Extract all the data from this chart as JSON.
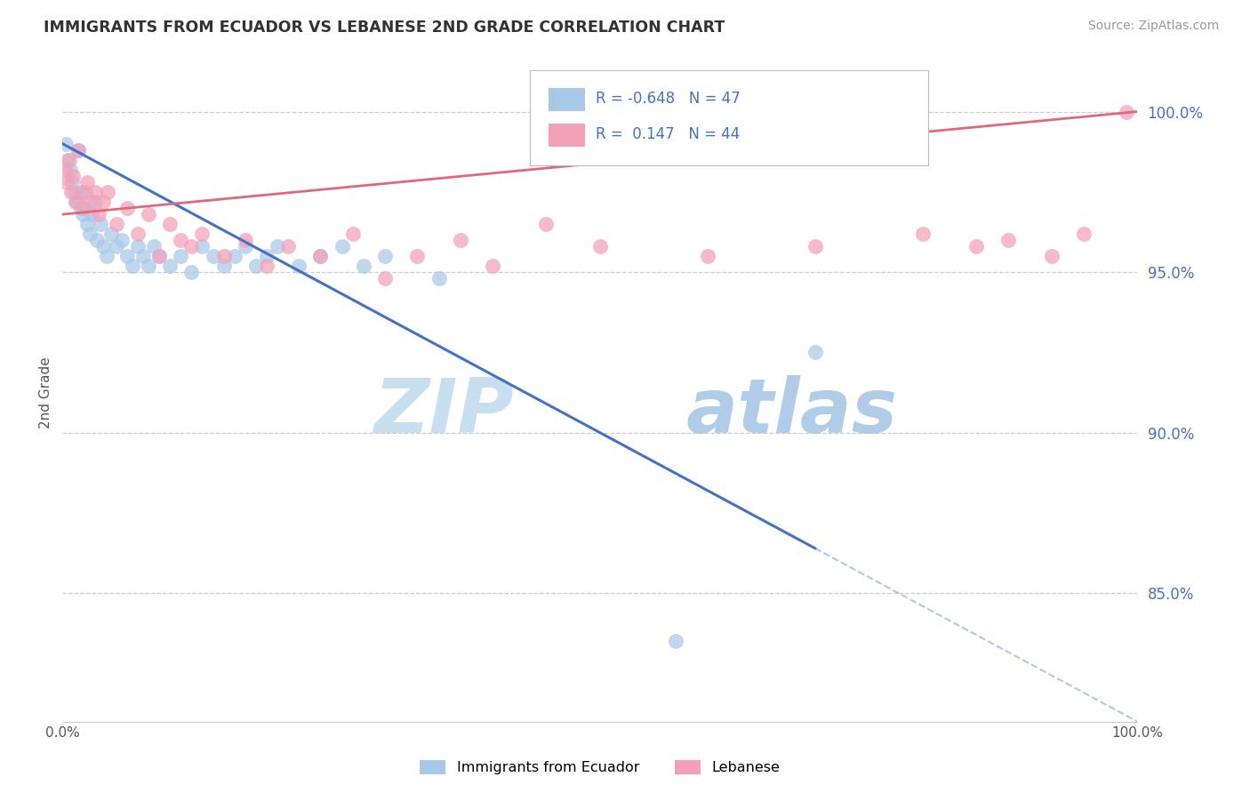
{
  "title": "IMMIGRANTS FROM ECUADOR VS LEBANESE 2ND GRADE CORRELATION CHART",
  "source": "Source: ZipAtlas.com",
  "ylabel": "2nd Grade",
  "r_ecuador": -0.648,
  "n_ecuador": 47,
  "r_lebanese": 0.147,
  "n_lebanese": 44,
  "color_ecuador": "#a8c8e8",
  "color_lebanese": "#f4a0b8",
  "line_color_ecuador": "#4472c4",
  "line_color_lebanese": "#e06878",
  "watermark_zip_color": "#c8dff0",
  "watermark_atlas_color": "#b0cce8",
  "legend_ecuador": "Immigrants from Ecuador",
  "legend_lebanese": "Lebanese",
  "ecuador_x": [
    0.3,
    0.5,
    0.7,
    0.9,
    1.1,
    1.3,
    1.5,
    1.7,
    1.9,
    2.1,
    2.3,
    2.5,
    2.7,
    3.0,
    3.2,
    3.5,
    3.8,
    4.1,
    4.5,
    5.0,
    5.5,
    6.0,
    6.5,
    7.0,
    7.5,
    8.0,
    8.5,
    9.0,
    10.0,
    11.0,
    12.0,
    13.0,
    14.0,
    15.0,
    16.0,
    17.0,
    18.0,
    19.0,
    20.0,
    22.0,
    24.0,
    26.0,
    28.0,
    30.0,
    35.0,
    57.0,
    70.0
  ],
  "ecuador_y": [
    99.0,
    98.5,
    98.2,
    97.8,
    97.5,
    97.2,
    98.8,
    97.0,
    96.8,
    97.5,
    96.5,
    96.2,
    96.8,
    97.2,
    96.0,
    96.5,
    95.8,
    95.5,
    96.2,
    95.8,
    96.0,
    95.5,
    95.2,
    95.8,
    95.5,
    95.2,
    95.8,
    95.5,
    95.2,
    95.5,
    95.0,
    95.8,
    95.5,
    95.2,
    95.5,
    95.8,
    95.2,
    95.5,
    95.8,
    95.2,
    95.5,
    95.8,
    95.2,
    95.5,
    94.8,
    83.5,
    92.5
  ],
  "lebanese_x": [
    0.2,
    0.4,
    0.6,
    0.8,
    1.0,
    1.2,
    1.5,
    1.8,
    2.0,
    2.3,
    2.6,
    3.0,
    3.4,
    3.8,
    4.2,
    5.0,
    6.0,
    7.0,
    8.0,
    9.0,
    10.0,
    11.0,
    12.0,
    13.0,
    15.0,
    17.0,
    19.0,
    21.0,
    24.0,
    27.0,
    30.0,
    33.0,
    37.0,
    40.0,
    45.0,
    50.0,
    60.0,
    70.0,
    80.0,
    85.0,
    88.0,
    92.0,
    95.0,
    99.0
  ],
  "lebanese_y": [
    98.2,
    97.8,
    98.5,
    97.5,
    98.0,
    97.2,
    98.8,
    97.5,
    97.0,
    97.8,
    97.2,
    97.5,
    96.8,
    97.2,
    97.5,
    96.5,
    97.0,
    96.2,
    96.8,
    95.5,
    96.5,
    96.0,
    95.8,
    96.2,
    95.5,
    96.0,
    95.2,
    95.8,
    95.5,
    96.2,
    94.8,
    95.5,
    96.0,
    95.2,
    96.5,
    95.8,
    95.5,
    95.8,
    96.2,
    95.8,
    96.0,
    95.5,
    96.2,
    100.0
  ],
  "yticks": [
    85.0,
    90.0,
    95.0,
    100.0
  ],
  "ymin": 81.0,
  "ymax": 101.5,
  "xmin": 0.0,
  "xmax": 100.0,
  "line_slope_ecuador": -0.18,
  "line_intercept_ecuador": 99.0,
  "line_slope_lebanese": 0.032,
  "line_intercept_lebanese": 96.8,
  "solid_end_x": 70.0
}
